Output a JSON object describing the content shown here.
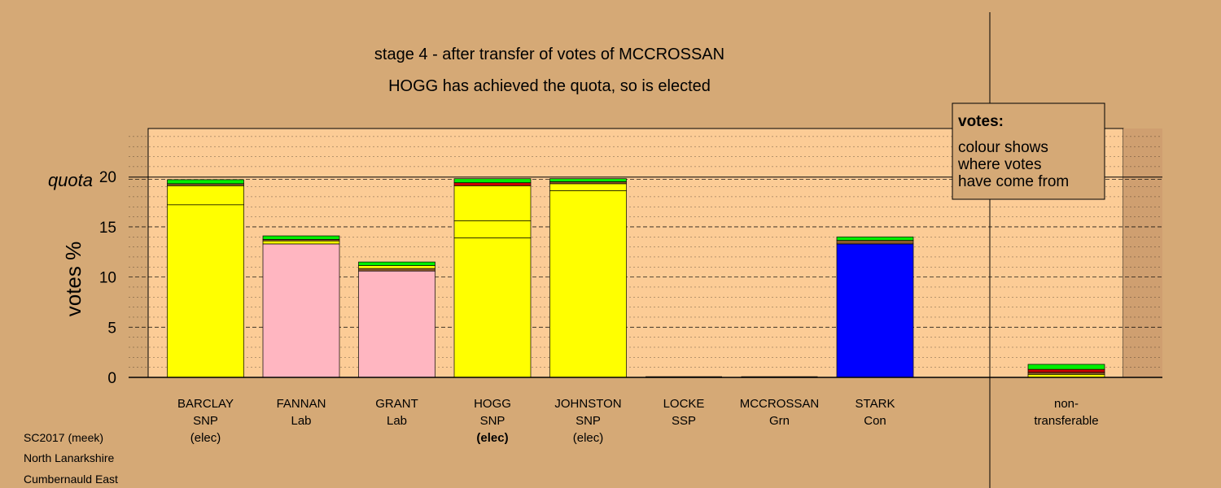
{
  "titles": {
    "line1": "stage 4 - after transfer of votes of MCCROSSAN",
    "line2": "HOGG has achieved the quota, so is elected"
  },
  "footer": [
    "SC2017 (meek)",
    "North Lanarkshire",
    "Cumbernauld East"
  ],
  "legend": {
    "title": "votes:",
    "lines": [
      "colour shows",
      "where votes",
      "have come from"
    ]
  },
  "quota_label": "quota",
  "colors": {
    "background": "#d5a976",
    "plot_fill": "#fccc96",
    "SNP": "#ffff00",
    "Lab": "#ffb6c1",
    "Con": "#0000ff",
    "Grn": "#00ee00",
    "SSP": "#cc0000",
    "brown": "#8b5a2b"
  },
  "chart_data": {
    "type": "bar",
    "stacked": true,
    "ylabel": "votes %",
    "ylim": [
      0,
      24.8
    ],
    "yticks": [
      0,
      5,
      10,
      15,
      20
    ],
    "quota": 19.8,
    "grid": true,
    "legend_position": "top-right",
    "categories": [
      {
        "name": "BARCLAY",
        "party": "SNP",
        "status": "(elec)",
        "bold": false
      },
      {
        "name": "FANNAN",
        "party": "Lab",
        "status": "",
        "bold": false
      },
      {
        "name": "GRANT",
        "party": "Lab",
        "status": "",
        "bold": false
      },
      {
        "name": "HOGG",
        "party": "SNP",
        "status": "(elec)",
        "bold": true
      },
      {
        "name": "JOHNSTON",
        "party": "SNP",
        "status": "(elec)",
        "bold": false
      },
      {
        "name": "LOCKE",
        "party": "SSP",
        "status": "",
        "bold": false
      },
      {
        "name": "MCCROSSAN",
        "party": "Grn",
        "status": "",
        "bold": false
      },
      {
        "name": "STARK",
        "party": "Con",
        "status": "",
        "bold": false
      }
    ],
    "bars": [
      {
        "segments": [
          {
            "value": 17.2,
            "color": "#ffff00"
          },
          {
            "value": 1.9,
            "color": "#ffff00"
          },
          {
            "value": 0.2,
            "color": "#8b5a2b"
          },
          {
            "value": 0.4,
            "color": "#00ee00"
          }
        ]
      },
      {
        "segments": [
          {
            "value": 13.3,
            "color": "#ffb6c1"
          },
          {
            "value": 0.3,
            "color": "#ffff00"
          },
          {
            "value": 0.15,
            "color": "#8b5a2b"
          },
          {
            "value": 0.35,
            "color": "#00ee00"
          }
        ]
      },
      {
        "segments": [
          {
            "value": 10.6,
            "color": "#ffb6c1"
          },
          {
            "value": 0.25,
            "color": "#8b5a2b"
          },
          {
            "value": 0.3,
            "color": "#ffff00"
          },
          {
            "value": 0.35,
            "color": "#00ee00"
          }
        ]
      },
      {
        "segments": [
          {
            "value": 13.9,
            "color": "#ffff00"
          },
          {
            "value": 1.7,
            "color": "#ffff00"
          },
          {
            "value": 3.5,
            "color": "#ffff00"
          },
          {
            "value": 0.3,
            "color": "#cc0000"
          },
          {
            "value": 0.4,
            "color": "#00ee00"
          }
        ]
      },
      {
        "segments": [
          {
            "value": 18.6,
            "color": "#ffff00"
          },
          {
            "value": 0.7,
            "color": "#ffff00"
          },
          {
            "value": 0.2,
            "color": "#8b5a2b"
          },
          {
            "value": 0.3,
            "color": "#00ee00"
          }
        ]
      },
      {
        "segments": []
      },
      {
        "segments": []
      },
      {
        "segments": [
          {
            "value": 13.3,
            "color": "#0000ff"
          },
          {
            "value": 0.35,
            "color": "#8b5a2b"
          },
          {
            "value": 0.35,
            "color": "#00ee00"
          }
        ]
      }
    ],
    "nontransferable": {
      "label": [
        "non-",
        "transferable"
      ],
      "segments": [
        {
          "value": 0.3,
          "color": "#ffff00"
        },
        {
          "value": 0.2,
          "color": "#8b5a2b"
        },
        {
          "value": 0.3,
          "color": "#cc0000"
        },
        {
          "value": 0.5,
          "color": "#00ee00"
        }
      ]
    }
  }
}
